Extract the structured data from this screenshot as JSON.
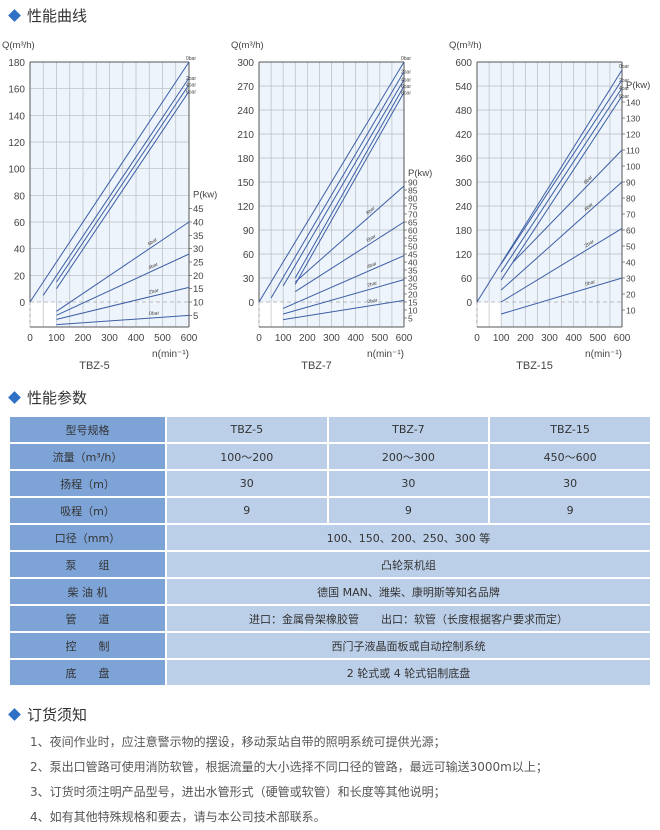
{
  "sections": {
    "curves_title": "性能曲线",
    "params_title": "性能参数",
    "order_title": "订货须知"
  },
  "colors": {
    "accent": "#2f6fc4",
    "table_header": "#7ea3d6",
    "table_cell": "#bccfe9",
    "curve": "#3d5fa6"
  },
  "chart_data": [
    {
      "type": "line",
      "title": "TBZ-5",
      "xlabel": "n(min⁻¹)",
      "ylabel": "Q(m³/h)",
      "y2label": "P(kw)",
      "xlim": [
        0,
        600
      ],
      "xticks": [
        0,
        100,
        200,
        300,
        400,
        500,
        600
      ],
      "ylim": [
        0,
        180
      ],
      "yticks": [
        0,
        20,
        40,
        60,
        80,
        100,
        120,
        140,
        160,
        180
      ],
      "ystep": 20,
      "y2ticks": [
        5,
        10,
        15,
        20,
        25,
        30,
        35,
        40,
        45
      ],
      "y2_offset_q": -20,
      "q_per_kw": 2,
      "grid": true,
      "flow_series": [
        {
          "name": "0bar",
          "points": [
            [
              0,
              0
            ],
            [
              600,
              180
            ]
          ]
        },
        {
          "name": "2bar",
          "points": [
            [
              50,
              5
            ],
            [
              600,
              168
            ]
          ]
        },
        {
          "name": "4bar",
          "points": [
            [
              100,
              15
            ],
            [
              600,
              163
            ]
          ]
        },
        {
          "name": "6bar",
          "points": [
            [
              100,
              10
            ],
            [
              600,
              158
            ]
          ]
        }
      ],
      "power_series": [
        {
          "name": "6bar",
          "points": [
            [
              100,
              6.5
            ],
            [
              600,
              40
            ]
          ]
        },
        {
          "name": "4bar",
          "points": [
            [
              100,
              5
            ],
            [
              600,
              28
            ]
          ]
        },
        {
          "name": "2bar",
          "points": [
            [
              100,
              3.5
            ],
            [
              600,
              15.5
            ]
          ]
        },
        {
          "name": "0bar",
          "points": [
            [
              100,
              1.5
            ],
            [
              600,
              5
            ]
          ]
        }
      ]
    },
    {
      "type": "line",
      "title": "TBZ-7",
      "xlabel": "n(min⁻¹)",
      "ylabel": "Q(m³/h)",
      "y2label": "P(kw)",
      "xlim": [
        0,
        600
      ],
      "xticks": [
        0,
        100,
        200,
        300,
        400,
        500,
        600
      ],
      "ylim": [
        0,
        300
      ],
      "yticks": [
        0,
        30,
        60,
        90,
        120,
        150,
        180,
        210,
        240,
        270,
        300
      ],
      "ystep": 30,
      "y2ticks": [
        5,
        10,
        15,
        20,
        25,
        30,
        35,
        40,
        45,
        50,
        55,
        60,
        65,
        70,
        75,
        80,
        85,
        90
      ],
      "y2_offset_q": -30,
      "q_per_kw": 2,
      "grid": true,
      "flow_series": [
        {
          "name": "0bar",
          "points": [
            [
              0,
              0
            ],
            [
              600,
              300
            ]
          ]
        },
        {
          "name": "2bar",
          "points": [
            [
              50,
              5
            ],
            [
              600,
              288
            ]
          ]
        },
        {
          "name": "4bar",
          "points": [
            [
              100,
              20
            ],
            [
              600,
              278
            ]
          ]
        },
        {
          "name": "6bar",
          "points": [
            [
              150,
              30
            ],
            [
              600,
              270
            ]
          ]
        },
        {
          "name": "8bar",
          "points": [
            [
              150,
              22
            ],
            [
              600,
              262
            ]
          ]
        }
      ],
      "power_series": [
        {
          "name": "8bar",
          "points": [
            [
              150,
              27.5
            ],
            [
              600,
              87.5
            ]
          ]
        },
        {
          "name": "6bar",
          "points": [
            [
              150,
              21.5
            ],
            [
              600,
              65
            ]
          ]
        },
        {
          "name": "4bar",
          "points": [
            [
              100,
              11
            ],
            [
              600,
              44
            ]
          ]
        },
        {
          "name": "2bar",
          "points": [
            [
              100,
              7.5
            ],
            [
              600,
              29
            ]
          ]
        },
        {
          "name": "0bar",
          "points": [
            [
              100,
              4
            ],
            [
              600,
              16
            ]
          ]
        }
      ]
    },
    {
      "type": "line",
      "title": "TBZ-15",
      "xlabel": "n(min⁻¹)",
      "ylabel": "Q(m³/h)",
      "y2label": "P(kw)",
      "xlim": [
        0,
        600
      ],
      "xticks": [
        0,
        100,
        200,
        300,
        400,
        500,
        600
      ],
      "ylim": [
        0,
        600
      ],
      "yticks": [
        0,
        60,
        120,
        180,
        240,
        300,
        360,
        420,
        480,
        540,
        600
      ],
      "ystep": 60,
      "y2ticks": [
        10,
        20,
        30,
        40,
        50,
        60,
        70,
        80,
        90,
        100,
        110,
        120,
        130,
        140
      ],
      "y2_offset_q": -60,
      "q_per_kw": 4,
      "grid": true,
      "flow_series": [
        {
          "name": "0bar",
          "points": [
            [
              0,
              0
            ],
            [
              600,
              580
            ]
          ]
        },
        {
          "name": "2bar",
          "points": [
            [
              100,
              95
            ],
            [
              600,
              555
            ]
          ]
        },
        {
          "name": "4bar",
          "points": [
            [
              100,
              75
            ],
            [
              600,
              535
            ]
          ]
        },
        {
          "name": "6bar",
          "points": [
            [
              100,
              55
            ],
            [
              600,
              515
            ]
          ]
        }
      ],
      "power_series": [
        {
          "name": "6bar",
          "points": [
            [
              150,
              40
            ],
            [
              600,
              110
            ]
          ]
        },
        {
          "name": "4bar",
          "points": [
            [
              100,
              22.5
            ],
            [
              600,
              90
            ]
          ]
        },
        {
          "name": "2bar",
          "points": [
            [
              100,
              15
            ],
            [
              600,
              61
            ]
          ]
        },
        {
          "name": "0bar",
          "points": [
            [
              100,
              7.5
            ],
            [
              600,
              30
            ]
          ]
        }
      ]
    }
  ],
  "table": {
    "rows": [
      {
        "label": "型号规格",
        "cells": [
          "TBZ-5",
          "TBZ-7",
          "TBZ-15"
        ]
      },
      {
        "label": "流量（m³/h）",
        "cells": [
          "100～200",
          "200～300",
          "450～600"
        ]
      },
      {
        "label": "扬程（m）",
        "cells": [
          "30",
          "30",
          "30"
        ]
      },
      {
        "label": "吸程（m）",
        "cells": [
          "9",
          "9",
          "9"
        ]
      },
      {
        "label": "口径（mm）",
        "cells": [
          "100、150、200、250、300 等"
        ]
      },
      {
        "label": "泵　　组",
        "cells": [
          "凸轮泵机组"
        ]
      },
      {
        "label": "柴 油 机",
        "cells": [
          "德国 MAN、潍柴、康明斯等知名品牌"
        ]
      },
      {
        "label": "管　　道",
        "cells": [
          "进口：金属骨架橡胶管　　出口：软管（长度根据客户要求而定）"
        ]
      },
      {
        "label": "控　　制",
        "cells": [
          "西门子液晶面板或自动控制系统"
        ]
      },
      {
        "label": "底　　盘",
        "cells": [
          "2 轮式或 4 轮式铝制底盘"
        ]
      }
    ]
  },
  "notes": [
    "1、夜间作业时，应注意警示物的摆设，移动泵站自带的照明系统可提供光源；",
    "2、泵出口管路可使用消防软管，根据流量的大小选择不同口径的管路，最远可输送3000m以上；",
    "3、订货时须注明产品型号，进出水管形式（硬管或软管）和长度等其他说明；",
    "4、如有其他特殊规格和要去，请与本公司技术部联系。"
  ]
}
